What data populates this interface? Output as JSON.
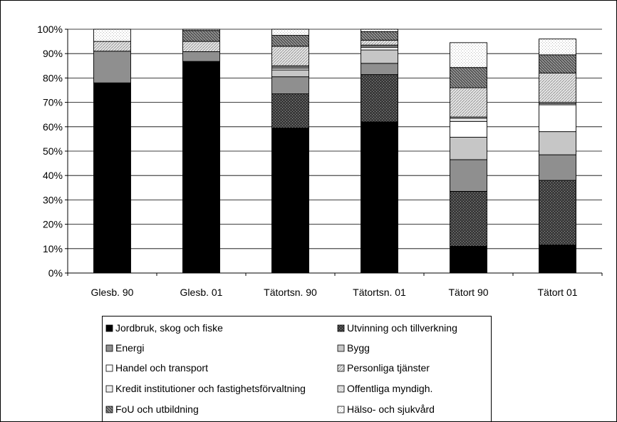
{
  "chart_data": {
    "type": "bar",
    "stacked": true,
    "title": "",
    "xlabel": "",
    "ylabel": "",
    "ylim": [
      0,
      100
    ],
    "y_ticks": [
      "0%",
      "10%",
      "20%",
      "30%",
      "40%",
      "50%",
      "60%",
      "70%",
      "80%",
      "90%",
      "100%"
    ],
    "grid": "horizontal",
    "legend_position": "bottom",
    "categories": [
      "Glesb. 90",
      "Glesb. 01",
      "Tätortsn. 90",
      "Tätortsn. 01",
      "Tätort 90",
      "Tätort 01"
    ],
    "series": [
      {
        "name": "Jordbruk, skog och fiske",
        "pattern": "solid-black",
        "values": [
          78.0,
          86.8,
          59.5,
          62.0,
          11.0,
          11.5
        ]
      },
      {
        "name": "Utvinning och tillverkning",
        "pattern": "dense-cross",
        "values": [
          0.0,
          0.0,
          14.0,
          19.4,
          22.5,
          26.5
        ]
      },
      {
        "name": "Energi",
        "pattern": "dark-gray",
        "values": [
          13.0,
          4.0,
          7.0,
          4.6,
          13.0,
          10.5
        ]
      },
      {
        "name": "Bygg",
        "pattern": "light-gray",
        "values": [
          0.0,
          0.0,
          2.8,
          5.5,
          9.2,
          9.5
        ]
      },
      {
        "name": "Handel och transport",
        "pattern": "white",
        "values": [
          0.0,
          0.0,
          0.7,
          1.0,
          6.5,
          11.0
        ]
      },
      {
        "name": "Kredit institutioner och fastighetsförvaltning",
        "pattern": "very-light-gray",
        "values": [
          0.0,
          0.0,
          0.5,
          0.5,
          1.3,
          0.5
        ]
      },
      {
        "name": "Offentliga myndigh.",
        "pattern": "light-dotted",
        "values": [
          0.0,
          0.0,
          0.5,
          0.5,
          0.5,
          0.5
        ]
      },
      {
        "name": "Personliga tjänster",
        "pattern": "diagonal",
        "values": [
          4.0,
          4.2,
          8.0,
          2.0,
          12.0,
          12.0
        ]
      },
      {
        "name": "FoU och utbildning",
        "pattern": "hatched-dark",
        "values": [
          0.0,
          4.5,
          4.5,
          3.5,
          8.3,
          7.5
        ]
      },
      {
        "name": "Hälso- och sjukvård",
        "pattern": "dotted-white",
        "values": [
          5.0,
          0.5,
          2.5,
          1.0,
          10.2,
          6.5
        ]
      }
    ],
    "legend_rows": [
      [
        "Jordbruk, skog och fiske",
        "Utvinning och tillverkning"
      ],
      [
        "Energi",
        "Bygg"
      ],
      [
        "Handel och transport",
        "Personliga tjänster"
      ],
      [
        "Kredit institutioner och fastighetsförvaltning",
        "Offentliga myndigh."
      ],
      [
        "FoU och utbildning",
        "Hälso- och sjukvård"
      ]
    ]
  }
}
